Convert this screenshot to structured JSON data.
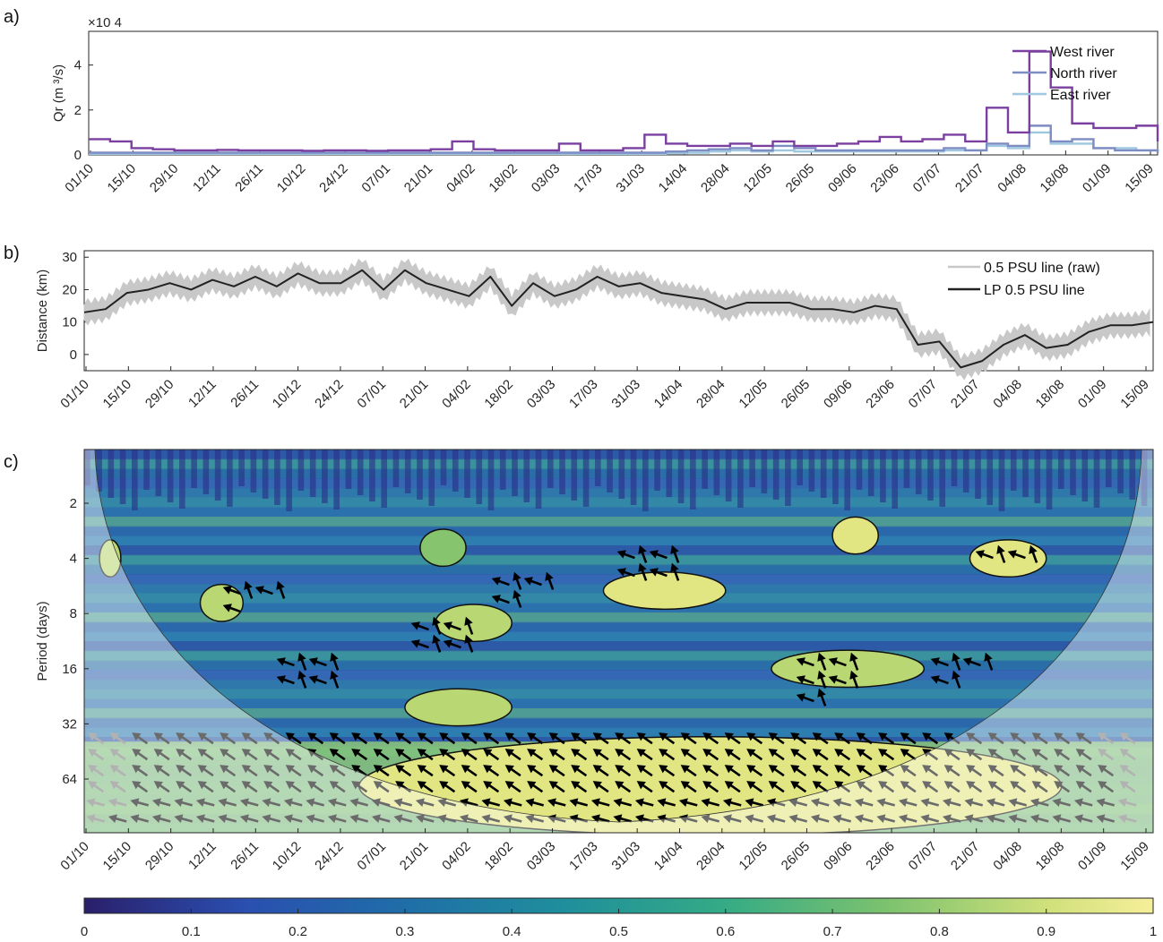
{
  "panel_labels": [
    "a)",
    "b)",
    "c)"
  ],
  "dates": [
    "01/10",
    "15/10",
    "29/10",
    "12/11",
    "26/11",
    "10/12",
    "24/12",
    "07/01",
    "21/01",
    "04/02",
    "18/02",
    "03/03",
    "17/03",
    "31/03",
    "14/04",
    "28/04",
    "12/05",
    "26/05",
    "09/06",
    "23/06",
    "07/07",
    "21/07",
    "04/08",
    "18/08",
    "01/09",
    "15/09"
  ],
  "colors": {
    "west": "#7b3fa0",
    "north": "#7e8cc4",
    "east": "#9ec8e0",
    "raw": "#c8c8c8",
    "lp": "#222222",
    "arrow": "#000000",
    "arrow_coi": "#7a7a7a"
  },
  "chart_data": [
    {
      "type": "line",
      "panel": "a)",
      "ylabel": "Qr (m ³/s)",
      "yexponent": "×10 4",
      "ylim": [
        0,
        5.5
      ],
      "yticks": [
        "0",
        "2",
        "4"
      ],
      "grid": false,
      "legend": "top-right",
      "x": [
        0,
        7,
        14,
        21,
        28,
        35,
        42,
        49,
        56,
        63,
        70,
        77,
        84,
        91,
        98,
        105,
        112,
        119,
        126,
        133,
        140,
        147,
        154,
        161,
        168,
        175,
        182,
        189,
        196,
        203,
        210,
        217,
        224,
        231,
        238,
        245,
        252,
        259,
        266,
        273,
        280,
        287,
        294,
        301,
        308,
        315,
        322,
        329,
        336,
        343,
        350
      ],
      "series": [
        {
          "name": "West river",
          "values": [
            0.7,
            0.6,
            0.3,
            0.25,
            0.2,
            0.2,
            0.22,
            0.2,
            0.2,
            0.2,
            0.18,
            0.2,
            0.2,
            0.18,
            0.2,
            0.2,
            0.25,
            0.6,
            0.25,
            0.2,
            0.2,
            0.2,
            0.5,
            0.2,
            0.2,
            0.3,
            0.9,
            0.5,
            0.4,
            0.4,
            0.5,
            0.4,
            0.6,
            0.4,
            0.4,
            0.5,
            0.6,
            0.8,
            0.6,
            0.7,
            0.9,
            0.6,
            2.1,
            1.0,
            4.6,
            3.0,
            1.4,
            1.2,
            1.2,
            1.3,
            0.6
          ]
        },
        {
          "name": "North river",
          "values": [
            0.1,
            0.1,
            0.1,
            0.1,
            0.1,
            0.1,
            0.1,
            0.1,
            0.1,
            0.1,
            0.1,
            0.1,
            0.1,
            0.1,
            0.1,
            0.1,
            0.1,
            0.1,
            0.1,
            0.1,
            0.1,
            0.1,
            0.1,
            0.1,
            0.1,
            0.1,
            0.1,
            0.15,
            0.2,
            0.25,
            0.3,
            0.2,
            0.4,
            0.3,
            0.2,
            0.2,
            0.2,
            0.2,
            0.2,
            0.2,
            0.3,
            0.2,
            0.5,
            0.4,
            1.3,
            0.6,
            0.7,
            0.3,
            0.2,
            0.2,
            0.1
          ]
        },
        {
          "name": "East river",
          "values": [
            0.05,
            0.05,
            0.05,
            0.05,
            0.05,
            0.05,
            0.05,
            0.05,
            0.05,
            0.05,
            0.05,
            0.05,
            0.05,
            0.05,
            0.05,
            0.05,
            0.05,
            0.05,
            0.05,
            0.05,
            0.05,
            0.05,
            0.05,
            0.05,
            0.05,
            0.05,
            0.05,
            0.08,
            0.1,
            0.15,
            0.2,
            0.15,
            0.2,
            0.15,
            0.15,
            0.15,
            0.15,
            0.15,
            0.15,
            0.15,
            0.2,
            0.2,
            0.4,
            0.3,
            1.0,
            0.5,
            0.5,
            0.3,
            0.3,
            0.2,
            0.1
          ]
        }
      ]
    },
    {
      "type": "line",
      "panel": "b)",
      "ylabel": "Distance (km)",
      "ylim": [
        -5,
        32
      ],
      "yticks": [
        "0",
        "10",
        "20",
        "30"
      ],
      "grid": false,
      "legend": "top-right",
      "x": [
        0,
        7,
        14,
        21,
        28,
        35,
        42,
        49,
        56,
        63,
        70,
        77,
        84,
        91,
        98,
        105,
        112,
        119,
        126,
        133,
        140,
        147,
        154,
        161,
        168,
        175,
        182,
        189,
        196,
        203,
        210,
        217,
        224,
        231,
        238,
        245,
        252,
        259,
        266,
        273,
        280,
        287,
        294,
        301,
        308,
        315,
        322,
        329,
        336,
        343,
        350
      ],
      "series": [
        {
          "name": "0.5 PSU line (raw)",
          "band_halfwidth": 4,
          "values": [
            13,
            14,
            19,
            20,
            22,
            20,
            23,
            21,
            24,
            21,
            25,
            22,
            22,
            26,
            20,
            26,
            22,
            20,
            18,
            24,
            15,
            22,
            18,
            20,
            24,
            21,
            22,
            19,
            18,
            17,
            14,
            16,
            16,
            16,
            14,
            14,
            13,
            15,
            14,
            3,
            4,
            -4,
            -2,
            3,
            6,
            2,
            3,
            7,
            9,
            9,
            10
          ]
        },
        {
          "name": "LP 0.5 PSU line",
          "values": [
            13,
            14,
            19,
            20,
            22,
            20,
            23,
            21,
            24,
            21,
            25,
            22,
            22,
            26,
            20,
            26,
            22,
            20,
            18,
            24,
            15,
            22,
            18,
            20,
            24,
            21,
            22,
            19,
            18,
            17,
            14,
            16,
            16,
            16,
            14,
            14,
            13,
            15,
            14,
            3,
            4,
            -4,
            -2,
            3,
            6,
            2,
            3,
            7,
            9,
            9,
            10
          ]
        }
      ]
    },
    {
      "type": "heatmap",
      "panel": "c)",
      "ylabel": "Period (days)",
      "yscale": "log2",
      "yticks": [
        "2",
        "4",
        "8",
        "16",
        "32",
        "64"
      ],
      "colorbar": {
        "ticks": [
          "0",
          "0.1",
          "0.2",
          "0.3",
          "0.4",
          "0.5",
          "0.6",
          "0.7",
          "0.8",
          "0.9",
          "1"
        ],
        "range": [
          0,
          1
        ]
      },
      "regions": [
        {
          "period_days": 4,
          "day_start": 5,
          "day_end": 12,
          "value": 0.85
        },
        {
          "period_days": 7,
          "day_start": 38,
          "day_end": 52,
          "value": 0.85
        },
        {
          "period_days": 3.5,
          "day_start": 110,
          "day_end": 125,
          "value": 0.8
        },
        {
          "period_days": 9,
          "day_start": 115,
          "day_end": 140,
          "value": 0.85
        },
        {
          "period_days": 26,
          "day_start": 105,
          "day_end": 140,
          "value": 0.85
        },
        {
          "period_days": 6,
          "day_start": 170,
          "day_end": 210,
          "value": 0.9
        },
        {
          "period_days": 3,
          "day_start": 245,
          "day_end": 260,
          "value": 0.9
        },
        {
          "period_days": 16,
          "day_start": 225,
          "day_end": 275,
          "value": 0.85
        },
        {
          "period_days": 4,
          "day_start": 290,
          "day_end": 315,
          "value": 0.9
        },
        {
          "period_days": 70,
          "day_start": 90,
          "day_end": 320,
          "value": 0.9
        }
      ]
    }
  ]
}
